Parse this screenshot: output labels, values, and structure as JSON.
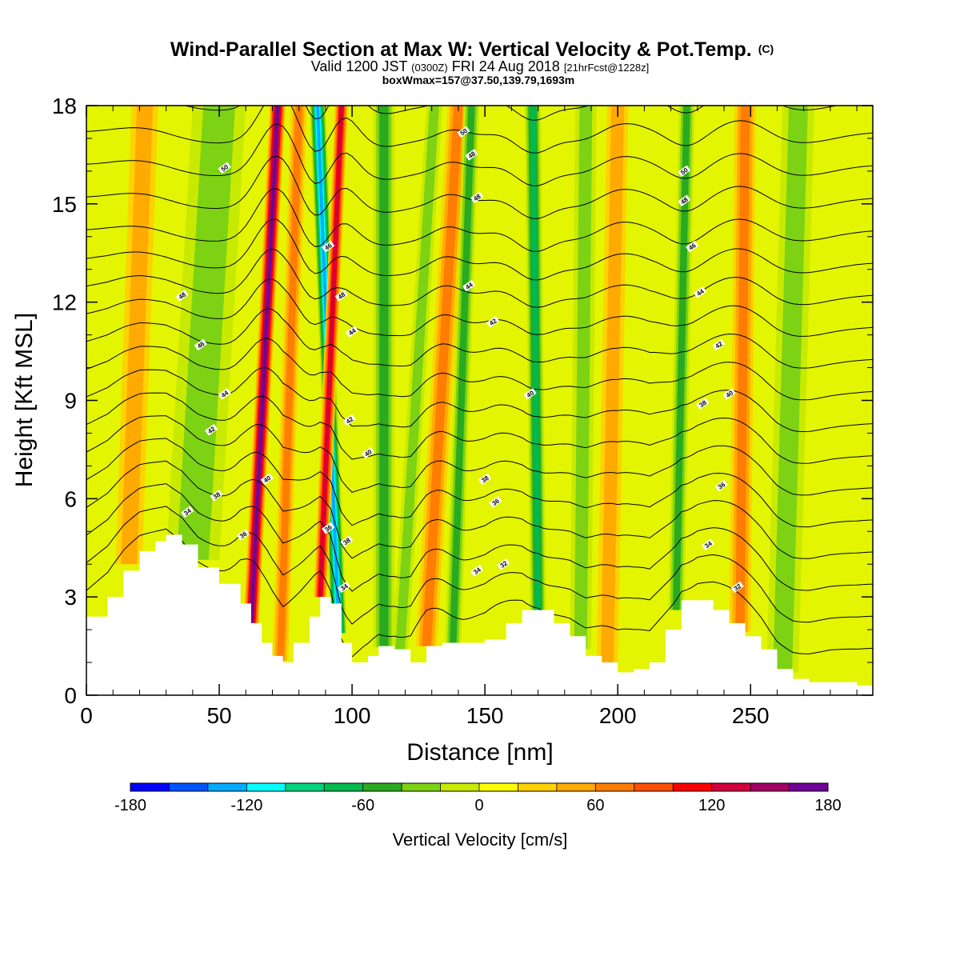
{
  "chart_data": {
    "type": "heatmap",
    "title": "Wind-Parallel Section at Max W: Vertical Velocity & Pot.Temp.",
    "title_mark": "(C)",
    "subtitle_parts": [
      "Valid 1200 JST ",
      "(0300Z)",
      " FRI 24 Aug 2018 ",
      "[21hrFcst@1228z]"
    ],
    "subtitle2": "boxWmax=157@37.50,139.79,1693m",
    "xlabel": "Distance [nm]",
    "ylabel": "Height [Kft MSL]",
    "xlim": [
      0,
      296
    ],
    "ylim": [
      0,
      18
    ],
    "x_ticks": [
      0,
      50,
      100,
      150,
      200,
      250
    ],
    "y_ticks": [
      0,
      3,
      6,
      9,
      12,
      15,
      18
    ],
    "grid": false,
    "colorbar": {
      "label": "Vertical Velocity [cm/s]",
      "ticks": [
        -180,
        -120,
        -60,
        0,
        60,
        120,
        180
      ],
      "range": [
        -180,
        180
      ],
      "colors": [
        "#0000ff",
        "#0055ff",
        "#00aaff",
        "#00ffff",
        "#00d27d",
        "#00b94f",
        "#2aaa1f",
        "#7dd214",
        "#c8ea00",
        "#ffff00",
        "#ffd200",
        "#ffaa00",
        "#ff7d00",
        "#ff4f00",
        "#ff0000",
        "#d2003c",
        "#a00064",
        "#6e0096"
      ]
    },
    "velocity_bands": [
      {
        "x_top": 72,
        "x_bottom": 62,
        "w": 150,
        "width": 3
      },
      {
        "x_top": 87,
        "x_bottom": 95,
        "w": -130,
        "width": 3
      },
      {
        "x_top": 96,
        "x_bottom": 88,
        "w": 110,
        "width": 2.5
      },
      {
        "x_top": 140,
        "x_bottom": 128,
        "w": 60,
        "width": 4
      },
      {
        "x_top": 80,
        "x_bottom": 73,
        "w": 50,
        "width": 3
      },
      {
        "x_top": 112,
        "x_bottom": 112,
        "w": -50,
        "width": 4
      },
      {
        "x_top": 131,
        "x_bottom": 118,
        "w": -40,
        "width": 3
      },
      {
        "x_top": 145,
        "x_bottom": 138,
        "w": -50,
        "width": 3
      },
      {
        "x_top": 168,
        "x_bottom": 170,
        "w": -70,
        "width": 3
      },
      {
        "x_top": 248,
        "x_bottom": 246,
        "w": 50,
        "width": 4
      },
      {
        "x_top": 226,
        "x_bottom": 222,
        "w": -50,
        "width": 3
      },
      {
        "x_top": 50,
        "x_bottom": 40,
        "w": -40,
        "width": 10
      },
      {
        "x_top": 22,
        "x_bottom": 16,
        "w": 30,
        "width": 5
      },
      {
        "x_top": 188,
        "x_bottom": 186,
        "w": -40,
        "width": 4
      },
      {
        "x_top": 200,
        "x_bottom": 196,
        "w": 40,
        "width": 4
      },
      {
        "x_top": 268,
        "x_bottom": 262,
        "w": -40,
        "width": 6
      }
    ],
    "terrain": {
      "x": [
        0,
        8,
        14,
        20,
        26,
        30,
        36,
        42,
        50,
        58,
        62,
        66,
        70,
        74,
        78,
        84,
        88,
        92,
        96,
        100,
        106,
        110,
        116,
        122,
        128,
        134,
        142,
        150,
        158,
        164,
        170,
        176,
        182,
        188,
        194,
        200,
        206,
        212,
        218,
        224,
        230,
        236,
        242,
        248,
        254,
        260,
        266,
        272,
        280,
        290,
        296
      ],
      "height": [
        2.4,
        3.0,
        3.8,
        4.4,
        4.7,
        4.9,
        4.6,
        3.9,
        3.4,
        2.8,
        2.2,
        1.6,
        1.2,
        1.0,
        1.6,
        2.4,
        3.0,
        2.8,
        1.6,
        1.0,
        1.2,
        1.5,
        1.4,
        1.0,
        1.5,
        1.6,
        1.6,
        1.7,
        2.2,
        2.6,
        2.6,
        2.2,
        1.8,
        1.2,
        1.0,
        0.7,
        0.8,
        1.0,
        2.0,
        2.9,
        2.9,
        2.6,
        2.2,
        1.8,
        1.4,
        0.8,
        0.5,
        0.4,
        0.4,
        0.3,
        0.3
      ]
    },
    "theta_contour_levels": [
      32,
      34,
      36,
      38,
      40,
      42,
      44,
      46,
      48,
      50,
      52,
      54,
      56,
      58,
      60,
      62,
      64,
      66,
      68,
      70,
      72
    ],
    "contour_labels": [
      {
        "text": "50",
        "x": 52,
        "y": 16.1
      },
      {
        "text": "48",
        "x": 36,
        "y": 12.2
      },
      {
        "text": "46",
        "x": 43,
        "y": 10.7
      },
      {
        "text": "44",
        "x": 52,
        "y": 9.2
      },
      {
        "text": "42",
        "x": 47,
        "y": 8.1
      },
      {
        "text": "38",
        "x": 49,
        "y": 6.1
      },
      {
        "text": "34",
        "x": 38,
        "y": 5.6
      },
      {
        "text": "36",
        "x": 59,
        "y": 4.9
      },
      {
        "text": "40",
        "x": 68,
        "y": 6.6
      },
      {
        "text": "46",
        "x": 91,
        "y": 13.7
      },
      {
        "text": "48",
        "x": 96,
        "y": 12.2
      },
      {
        "text": "44",
        "x": 100,
        "y": 11.1
      },
      {
        "text": "42",
        "x": 99,
        "y": 8.4
      },
      {
        "text": "40",
        "x": 106,
        "y": 7.4
      },
      {
        "text": "36",
        "x": 91,
        "y": 5.1
      },
      {
        "text": "38",
        "x": 98,
        "y": 4.7
      },
      {
        "text": "34",
        "x": 97,
        "y": 3.3
      },
      {
        "text": "50",
        "x": 142,
        "y": 17.2
      },
      {
        "text": "48",
        "x": 145,
        "y": 16.5
      },
      {
        "text": "48",
        "x": 147,
        "y": 15.2
      },
      {
        "text": "44",
        "x": 144,
        "y": 12.5
      },
      {
        "text": "42",
        "x": 153,
        "y": 11.4
      },
      {
        "text": "38",
        "x": 150,
        "y": 6.6
      },
      {
        "text": "36",
        "x": 154,
        "y": 5.9
      },
      {
        "text": "34",
        "x": 147,
        "y": 3.8
      },
      {
        "text": "32",
        "x": 157,
        "y": 4.0
      },
      {
        "text": "40",
        "x": 167,
        "y": 9.2
      },
      {
        "text": "50",
        "x": 225,
        "y": 16.0
      },
      {
        "text": "48",
        "x": 225,
        "y": 15.1
      },
      {
        "text": "46",
        "x": 228,
        "y": 13.7
      },
      {
        "text": "44",
        "x": 231,
        "y": 12.3
      },
      {
        "text": "42",
        "x": 238,
        "y": 10.7
      },
      {
        "text": "40",
        "x": 242,
        "y": 9.2
      },
      {
        "text": "38",
        "x": 232,
        "y": 8.9
      },
      {
        "text": "36",
        "x": 239,
        "y": 6.4
      },
      {
        "text": "34",
        "x": 234,
        "y": 4.6
      },
      {
        "text": "32",
        "x": 245,
        "y": 3.3
      }
    ]
  }
}
